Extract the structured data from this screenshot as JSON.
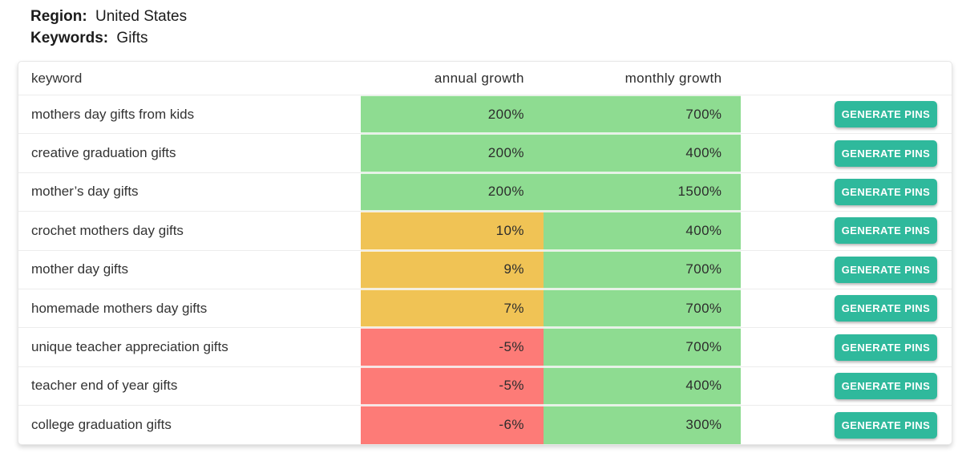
{
  "filters": {
    "region_label": "Region:",
    "region_value": "United States",
    "keywords_label": "Keywords:",
    "keywords_value": "Gifts"
  },
  "table": {
    "headers": {
      "keyword": "keyword",
      "annual": "annual growth",
      "monthly": "monthly growth",
      "actions": ""
    },
    "action_button_label": "GENERATE PINS",
    "rows": [
      {
        "keyword": "mothers day gifts from kids",
        "annual_growth": "200%",
        "annual_level": "positive",
        "monthly_growth": "700%",
        "monthly_level": "positive"
      },
      {
        "keyword": "creative graduation gifts",
        "annual_growth": "200%",
        "annual_level": "positive",
        "monthly_growth": "400%",
        "monthly_level": "positive"
      },
      {
        "keyword": "mother’s day gifts",
        "annual_growth": "200%",
        "annual_level": "positive",
        "monthly_growth": "1500%",
        "monthly_level": "positive"
      },
      {
        "keyword": "crochet mothers day gifts",
        "annual_growth": "10%",
        "annual_level": "neutral",
        "monthly_growth": "400%",
        "monthly_level": "positive"
      },
      {
        "keyword": "mother day gifts",
        "annual_growth": "9%",
        "annual_level": "neutral",
        "monthly_growth": "700%",
        "monthly_level": "positive"
      },
      {
        "keyword": "homemade mothers day gifts",
        "annual_growth": "7%",
        "annual_level": "neutral",
        "monthly_growth": "700%",
        "monthly_level": "positive"
      },
      {
        "keyword": "unique teacher appreciation gifts",
        "annual_growth": "-5%",
        "annual_level": "negative",
        "monthly_growth": "700%",
        "monthly_level": "positive"
      },
      {
        "keyword": "teacher end of year gifts",
        "annual_growth": "-5%",
        "annual_level": "negative",
        "monthly_growth": "400%",
        "monthly_level": "positive"
      },
      {
        "keyword": "college graduation gifts",
        "annual_growth": "-6%",
        "annual_level": "negative",
        "monthly_growth": "300%",
        "monthly_level": "positive"
      }
    ]
  },
  "colors": {
    "positive": "#8edc91",
    "neutral": "#f0c355",
    "negative": "#fd7b77",
    "button": "#2fb99c",
    "button_text": "#ffffff"
  }
}
